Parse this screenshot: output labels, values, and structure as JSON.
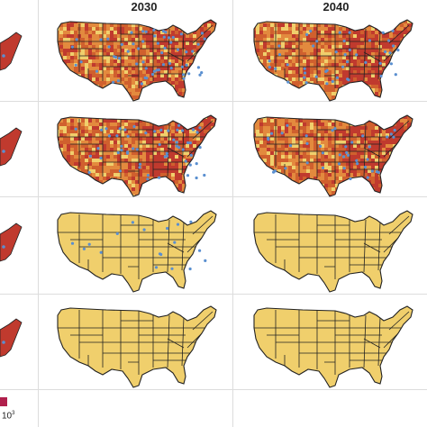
{
  "columns": [
    {
      "label": "2030"
    },
    {
      "label": "2040"
    }
  ],
  "legend": {
    "base": "10",
    "exponent": "3",
    "color": "#b0204c"
  },
  "colors": {
    "base_yellow": "#f0cf6c",
    "orange": "#e38a3e",
    "deep_orange": "#d0602e",
    "red": "#c03a2e",
    "dot_blue": "#5a8fd0",
    "border": "#222222"
  },
  "rows": [
    {
      "name": "row-1",
      "shading": "heavy",
      "dots_2030": 60,
      "dots_2040": 45
    },
    {
      "name": "row-2",
      "shading": "heavy",
      "dots_2030": 55,
      "dots_2040": 40
    },
    {
      "name": "row-3",
      "shading": "none",
      "dots_2030": 18,
      "dots_2040": 0
    },
    {
      "name": "row-4",
      "shading": "none",
      "dots_2030": 0,
      "dots_2040": 0
    }
  ]
}
